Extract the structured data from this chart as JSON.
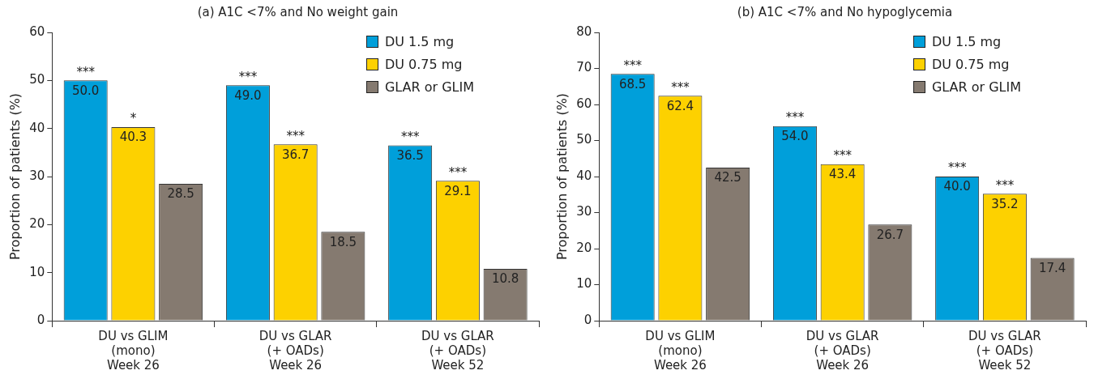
{
  "chart_data": [
    {
      "type": "bar",
      "title": "(a) A1C <7% and No weight gain",
      "ylabel": "Proportion of patients (%)",
      "categories": [
        "DU vs GLIM\n(mono)\nWeek 26",
        "DU vs GLAR\n(+ OADs)\nWeek 26",
        "DU vs GLAR\n(+ OADs)\nWeek 52"
      ],
      "series": [
        {
          "name": "DU 1.5 mg",
          "color": "#009fda",
          "values": [
            50.0,
            49.0,
            36.5
          ],
          "value_labels": [
            "50.0",
            "49.0",
            "36.5"
          ]
        },
        {
          "name": "DU 0.75 mg",
          "color": "#fdd100",
          "values": [
            40.3,
            36.7,
            29.1
          ],
          "value_labels": [
            "40.3",
            "36.7",
            "29.1"
          ]
        },
        {
          "name": "GLAR or GLIM",
          "color": "#857a70",
          "values": [
            28.5,
            18.5,
            10.8
          ],
          "value_labels": [
            "28.5",
            "18.5",
            "10.8"
          ]
        }
      ],
      "ylim": [
        0,
        60
      ],
      "yticks": [
        0,
        10,
        20,
        30,
        40,
        50,
        60
      ],
      "grid": false,
      "legend": "top right",
      "annotations": [
        "***",
        "*",
        "***",
        "***",
        "***",
        "***"
      ]
    },
    {
      "type": "bar",
      "title": "(b) A1C <7% and No hypoglycemia",
      "ylabel": "Proportion of patients (%)",
      "categories": [
        "DU vs GLIM\n(mono)\nWeek 26",
        "DU vs GLAR\n(+ OADs)\nWeek 26",
        "DU vs GLAR\n(+ OADs)\nWeek 52"
      ],
      "series": [
        {
          "name": "DU 1.5 mg",
          "color": "#009fda",
          "values": [
            68.5,
            54.0,
            40.0
          ],
          "value_labels": [
            "68.5",
            "54.0",
            "40.0"
          ]
        },
        {
          "name": "DU 0.75 mg",
          "color": "#fdd100",
          "values": [
            62.4,
            43.4,
            35.2
          ],
          "value_labels": [
            "62.4",
            "43.4",
            "35.2"
          ]
        },
        {
          "name": "GLAR or GLIM",
          "color": "#857a70",
          "values": [
            42.5,
            26.7,
            17.4
          ],
          "value_labels": [
            "42.5",
            "26.7",
            "17.4"
          ]
        }
      ],
      "ylim": [
        0,
        80
      ],
      "yticks": [
        0,
        10,
        20,
        30,
        40,
        50,
        60,
        70,
        80
      ],
      "grid": false,
      "legend": "top right",
      "annotations": [
        "***",
        "***",
        "***",
        "***",
        "***",
        "***"
      ]
    }
  ]
}
